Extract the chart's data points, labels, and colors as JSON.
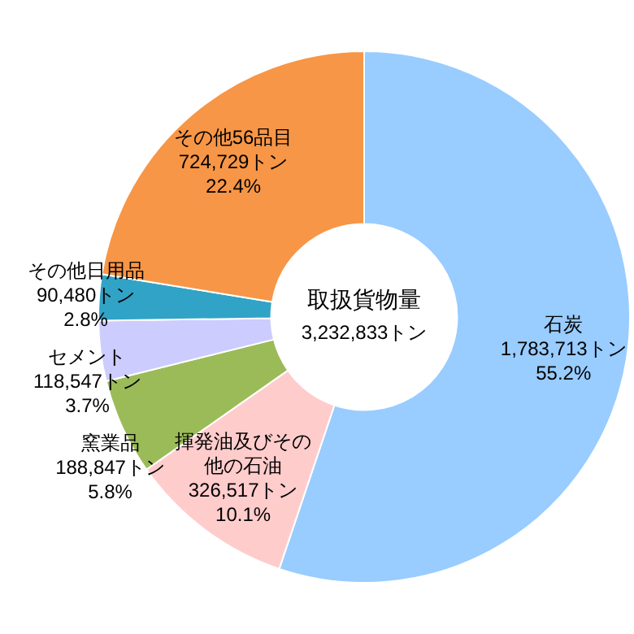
{
  "chart_data": {
    "type": "donut",
    "categories": [
      "石炭",
      "揮発油及びその他の石油",
      "窯業品",
      "セメント",
      "その他日用品",
      "その他56品目"
    ],
    "values": [
      1783713,
      326517,
      188847,
      118547,
      90480,
      724729
    ],
    "colors": [
      "#99ccff",
      "#ffcccc",
      "#9bbb59",
      "#ccccff",
      "#31a3c6",
      "#f79646"
    ],
    "value_labels": [
      "1,783,713トン\n55.2%",
      "326,517トン\n10.1%",
      "188,847トン\n5.8%",
      "118,547トン\n3.7%",
      "90,480トン\n2.8%",
      "724,729トン\n22.4%"
    ],
    "annotations": [
      "取扱貨物量",
      "3,232,833トン"
    ],
    "legend": false
  }
}
